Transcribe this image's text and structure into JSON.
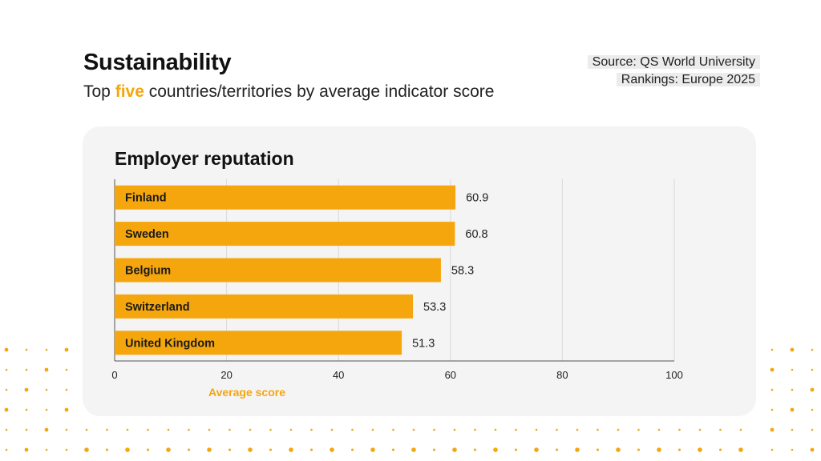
{
  "header": {
    "title": "Sustainability",
    "subtitle_prefix": "Top ",
    "subtitle_highlight": "five",
    "subtitle_suffix": " countries/territories by average indicator score",
    "source_line1": "Source: QS World University",
    "source_line2": "Rankings: Europe 2025"
  },
  "colors": {
    "accent": "#f5a60d",
    "card": "#f4f4f4",
    "grid": "#d9d9d9"
  },
  "chart_data": {
    "type": "bar",
    "orientation": "horizontal",
    "title": "Employer reputation",
    "categories": [
      "Finland",
      "Sweden",
      "Belgium",
      "Switzerland",
      "United Kingdom"
    ],
    "values": [
      60.9,
      60.8,
      58.3,
      53.3,
      51.3
    ],
    "value_labels": [
      "60.9",
      "60.8",
      "58.3",
      "53.3",
      "51.3"
    ],
    "xlabel": "Average score",
    "ylabel": "",
    "xlim": [
      0,
      100
    ],
    "xticks": [
      "0",
      "20",
      "40",
      "60",
      "80",
      "100"
    ],
    "grid": true,
    "legend": "none"
  }
}
